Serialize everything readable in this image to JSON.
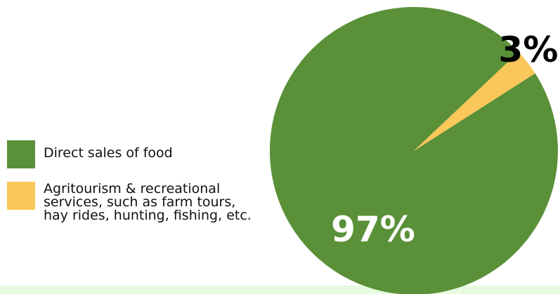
{
  "chart_data": {
    "type": "pie",
    "categories": [
      "Direct sales of food",
      "Agritourism & recreational services, such as farm tours, hay rides, hunting, fishing, etc."
    ],
    "values": [
      97,
      3
    ],
    "data_labels": [
      "97%",
      "3%"
    ],
    "colors": [
      "#5a9038",
      "#f9c75a"
    ],
    "legend": {
      "placement": "left",
      "entries": [
        {
          "lines": [
            "Direct sales of food"
          ]
        },
        {
          "lines": [
            "Agritourism & recreational",
            "services, such as farm tours,",
            "hay rides, hunting, fishing, etc."
          ]
        }
      ]
    }
  }
}
